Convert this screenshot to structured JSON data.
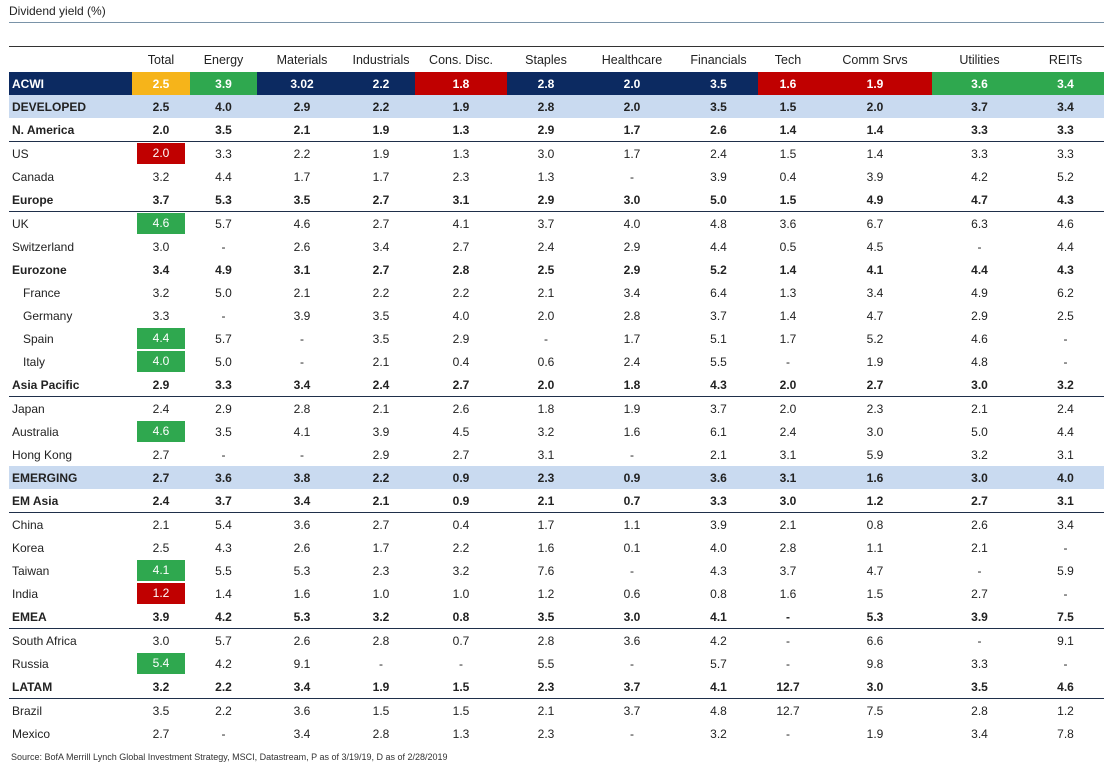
{
  "title": "Dividend yield (%)",
  "source": "Source: BofA Merrill Lynch Global Investment Strategy, MSCI, Datastream, P as of 3/19/19, D as of 2/28/2019",
  "colors": {
    "navy": "#0c2a61",
    "band": "#c9daf0",
    "green": "#2fa84f",
    "red": "#c00000",
    "orange": "#f6b41a"
  },
  "chart_data": {
    "type": "table",
    "title": "Dividend yield (%)",
    "columns": [
      "Total",
      "Energy",
      "Materials",
      "Industrials",
      "Cons. Disc.",
      "Staples",
      "Healthcare",
      "Financials",
      "Tech",
      "Comm Srvs",
      "Utilities",
      "REITs"
    ],
    "rows": [
      {
        "region": "ACWI",
        "style": "acwi",
        "values": [
          "2.5",
          "3.9",
          "3.02",
          "2.2",
          "1.8",
          "2.8",
          "2.0",
          "3.5",
          "1.6",
          "1.9",
          "3.6",
          "3.4"
        ],
        "colors": [
          "orange",
          "green",
          "navy",
          "navy",
          "red",
          "navy",
          "navy",
          "navy",
          "red",
          "red",
          "green",
          "green"
        ]
      },
      {
        "region": "DEVELOPED",
        "style": "band",
        "values": [
          "2.5",
          "4.0",
          "2.9",
          "2.2",
          "1.9",
          "2.8",
          "2.0",
          "3.5",
          "1.5",
          "2.0",
          "3.7",
          "3.4"
        ]
      },
      {
        "region": "N. America",
        "style": "bold-rule",
        "values": [
          "2.0",
          "3.5",
          "2.1",
          "1.9",
          "1.3",
          "2.9",
          "1.7",
          "2.6",
          "1.4",
          "1.4",
          "3.3",
          "3.3"
        ]
      },
      {
        "region": "US",
        "values": [
          "2.0",
          "3.3",
          "2.2",
          "1.9",
          "1.3",
          "3.0",
          "1.7",
          "2.4",
          "1.5",
          "1.4",
          "3.3",
          "3.3"
        ],
        "highlight": "red"
      },
      {
        "region": "Canada",
        "values": [
          "3.2",
          "4.4",
          "1.7",
          "1.7",
          "2.3",
          "1.3",
          "-",
          "3.9",
          "0.4",
          "3.9",
          "4.2",
          "5.2"
        ]
      },
      {
        "region": "Europe",
        "style": "bold-rule",
        "values": [
          "3.7",
          "5.3",
          "3.5",
          "2.7",
          "3.1",
          "2.9",
          "3.0",
          "5.0",
          "1.5",
          "4.9",
          "4.7",
          "4.3"
        ]
      },
      {
        "region": "UK",
        "values": [
          "4.6",
          "5.7",
          "4.6",
          "2.7",
          "4.1",
          "3.7",
          "4.0",
          "4.8",
          "3.6",
          "6.7",
          "6.3",
          "4.6"
        ],
        "highlight": "green"
      },
      {
        "region": "Switzerland",
        "values": [
          "3.0",
          "-",
          "2.6",
          "3.4",
          "2.7",
          "2.4",
          "2.9",
          "4.4",
          "0.5",
          "4.5",
          "-",
          "4.4"
        ]
      },
      {
        "region": "Eurozone",
        "style": "bold",
        "values": [
          "3.4",
          "4.9",
          "3.1",
          "2.7",
          "2.8",
          "2.5",
          "2.9",
          "5.2",
          "1.4",
          "4.1",
          "4.4",
          "4.3"
        ]
      },
      {
        "region": "France",
        "indent": true,
        "values": [
          "3.2",
          "5.0",
          "2.1",
          "2.2",
          "2.2",
          "2.1",
          "3.4",
          "6.4",
          "1.3",
          "3.4",
          "4.9",
          "6.2"
        ]
      },
      {
        "region": "Germany",
        "indent": true,
        "values": [
          "3.3",
          "-",
          "3.9",
          "3.5",
          "4.0",
          "2.0",
          "2.8",
          "3.7",
          "1.4",
          "4.7",
          "2.9",
          "2.5"
        ]
      },
      {
        "region": "Spain",
        "indent": true,
        "values": [
          "4.4",
          "5.7",
          "-",
          "3.5",
          "2.9",
          "-",
          "1.7",
          "5.1",
          "1.7",
          "5.2",
          "4.6",
          "-"
        ],
        "highlight": "green"
      },
      {
        "region": "Italy",
        "indent": true,
        "values": [
          "4.0",
          "5.0",
          "-",
          "2.1",
          "0.4",
          "0.6",
          "2.4",
          "5.5",
          "-",
          "1.9",
          "4.8",
          "-"
        ],
        "highlight": "green"
      },
      {
        "region": "Asia Pacific",
        "style": "bold-rule",
        "values": [
          "2.9",
          "3.3",
          "3.4",
          "2.4",
          "2.7",
          "2.0",
          "1.8",
          "4.3",
          "2.0",
          "2.7",
          "3.0",
          "3.2"
        ]
      },
      {
        "region": "Japan",
        "values": [
          "2.4",
          "2.9",
          "2.8",
          "2.1",
          "2.6",
          "1.8",
          "1.9",
          "3.7",
          "2.0",
          "2.3",
          "2.1",
          "2.4"
        ]
      },
      {
        "region": "Australia",
        "values": [
          "4.6",
          "3.5",
          "4.1",
          "3.9",
          "4.5",
          "3.2",
          "1.6",
          "6.1",
          "2.4",
          "3.0",
          "5.0",
          "4.4"
        ],
        "highlight": "green"
      },
      {
        "region": "Hong Kong",
        "values": [
          "2.7",
          "-",
          "-",
          "2.9",
          "2.7",
          "3.1",
          "-",
          "2.1",
          "3.1",
          "5.9",
          "3.2",
          "3.1"
        ]
      },
      {
        "region": "EMERGING",
        "style": "band",
        "values": [
          "2.7",
          "3.6",
          "3.8",
          "2.2",
          "0.9",
          "2.3",
          "0.9",
          "3.6",
          "3.1",
          "1.6",
          "3.0",
          "4.0"
        ]
      },
      {
        "region": "EM Asia",
        "style": "bold-rule",
        "values": [
          "2.4",
          "3.7",
          "3.4",
          "2.1",
          "0.9",
          "2.1",
          "0.7",
          "3.3",
          "3.0",
          "1.2",
          "2.7",
          "3.1"
        ]
      },
      {
        "region": "China",
        "values": [
          "2.1",
          "5.4",
          "3.6",
          "2.7",
          "0.4",
          "1.7",
          "1.1",
          "3.9",
          "2.1",
          "0.8",
          "2.6",
          "3.4"
        ]
      },
      {
        "region": "Korea",
        "values": [
          "2.5",
          "4.3",
          "2.6",
          "1.7",
          "2.2",
          "1.6",
          "0.1",
          "4.0",
          "2.8",
          "1.1",
          "2.1",
          "-"
        ]
      },
      {
        "region": "Taiwan",
        "values": [
          "4.1",
          "5.5",
          "5.3",
          "2.3",
          "3.2",
          "7.6",
          "-",
          "4.3",
          "3.7",
          "4.7",
          "-",
          "5.9"
        ],
        "highlight": "green"
      },
      {
        "region": "India",
        "values": [
          "1.2",
          "1.4",
          "1.6",
          "1.0",
          "1.0",
          "1.2",
          "0.6",
          "0.8",
          "1.6",
          "1.5",
          "2.7",
          "-"
        ],
        "highlight": "red"
      },
      {
        "region": "EMEA",
        "style": "bold-rule",
        "values": [
          "3.9",
          "4.2",
          "5.3",
          "3.2",
          "0.8",
          "3.5",
          "3.0",
          "4.1",
          "-",
          "5.3",
          "3.9",
          "7.5"
        ]
      },
      {
        "region": "South Africa",
        "values": [
          "3.0",
          "5.7",
          "2.6",
          "2.8",
          "0.7",
          "2.8",
          "3.6",
          "4.2",
          "-",
          "6.6",
          "-",
          "9.1"
        ]
      },
      {
        "region": "Russia",
        "values": [
          "5.4",
          "4.2",
          "9.1",
          "-",
          "-",
          "5.5",
          "-",
          "5.7",
          "-",
          "9.8",
          "3.3",
          "-"
        ],
        "highlight": "green"
      },
      {
        "region": "LATAM",
        "style": "bold-rule",
        "values": [
          "3.2",
          "2.2",
          "3.4",
          "1.9",
          "1.5",
          "2.3",
          "3.7",
          "4.1",
          "12.7",
          "3.0",
          "3.5",
          "4.6"
        ]
      },
      {
        "region": "Brazil",
        "values": [
          "3.5",
          "2.2",
          "3.6",
          "1.5",
          "1.5",
          "2.1",
          "3.7",
          "4.8",
          "12.7",
          "7.5",
          "2.8",
          "1.2"
        ]
      },
      {
        "region": "Mexico",
        "values": [
          "2.7",
          "-",
          "3.4",
          "2.8",
          "1.3",
          "2.3",
          "-",
          "3.2",
          "-",
          "1.9",
          "3.4",
          "7.8"
        ]
      }
    ]
  }
}
